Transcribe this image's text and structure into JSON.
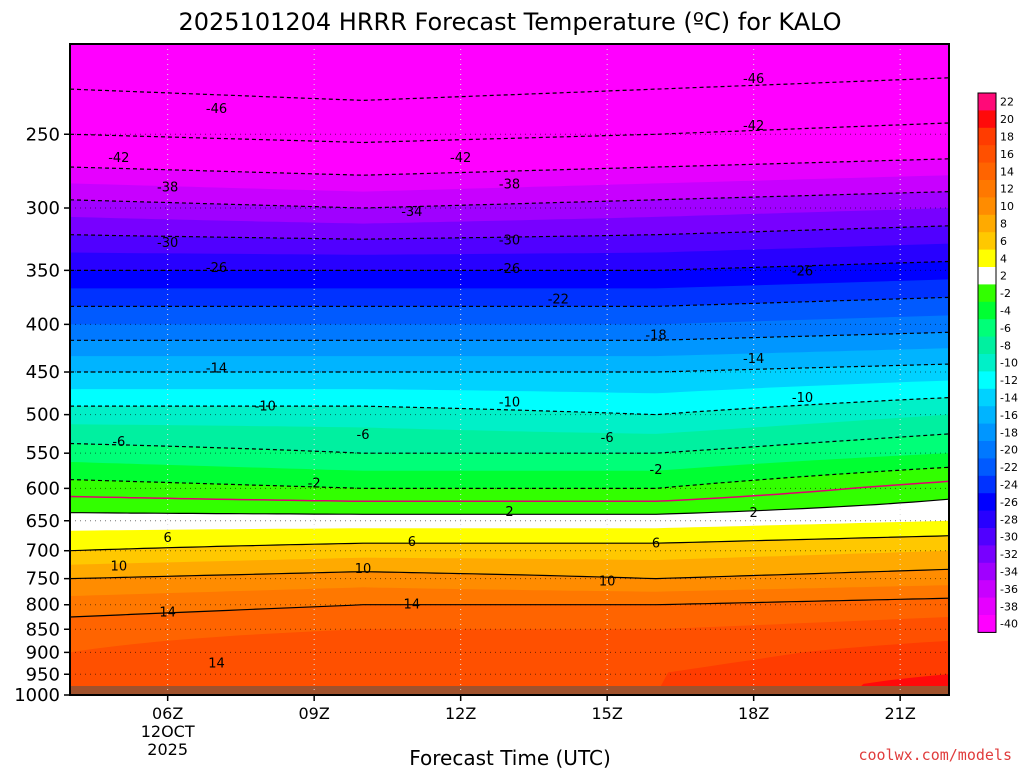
{
  "chart_data": {
    "type": "heatmap",
    "title": "2025101204 HRRR Forecast Temperature (ºC) for KALO",
    "xlabel": "Forecast Time (UTC)",
    "credit": "coolwx.com/models",
    "x_ticks": [
      {
        "hour": 6,
        "lines": [
          "06Z",
          "12OCT",
          "2025"
        ]
      },
      {
        "hour": 9,
        "lines": [
          "09Z"
        ]
      },
      {
        "hour": 12,
        "lines": [
          "12Z"
        ]
      },
      {
        "hour": 15,
        "lines": [
          "15Z"
        ]
      },
      {
        "hour": 18,
        "lines": [
          "18Z"
        ]
      },
      {
        "hour": 21,
        "lines": [
          "21Z"
        ]
      }
    ],
    "xlim_hours": [
      4,
      22
    ],
    "y_ticks": [
      250,
      300,
      350,
      400,
      450,
      500,
      550,
      600,
      650,
      700,
      750,
      800,
      850,
      900,
      950,
      1000
    ],
    "ylim_hpa": [
      200,
      1000
    ],
    "y_scale": "log-pressure",
    "ground_pressure": 978,
    "colorbar": {
      "labels": [
        "22",
        "20",
        "18",
        "16",
        "14",
        "12",
        "10",
        "8",
        "6",
        "4",
        "2",
        "-2",
        "-4",
        "-6",
        "-8",
        "-10",
        "-12",
        "-14",
        "-16",
        "-18",
        "-20",
        "-22",
        "-24",
        "-26",
        "-28",
        "-30",
        "-32",
        "-34",
        "-36",
        "-38",
        "-40"
      ],
      "colors": [
        "#ff0a78",
        "#ff0a0a",
        "#ff3c00",
        "#ff5000",
        "#ff6400",
        "#ff7800",
        "#ff8c00",
        "#ffaa00",
        "#ffc800",
        "#ffff00",
        "#ffffff",
        "#32ff00",
        "#00ff32",
        "#00ff78",
        "#00f0a0",
        "#00f0c8",
        "#00ffff",
        "#00d2ff",
        "#00b4ff",
        "#0096ff",
        "#0078ff",
        "#005aff",
        "#0032ff",
        "#0000ff",
        "#2800ff",
        "#5000ff",
        "#7800ff",
        "#a000ff",
        "#c800ff",
        "#e600ff",
        "#ff00ff"
      ]
    },
    "profile_levels_hpa": [
      200,
      250,
      300,
      350,
      400,
      450,
      500,
      550,
      600,
      650,
      700,
      750,
      800,
      850,
      900,
      950,
      978
    ],
    "profile_times_hours": [
      4,
      10,
      16,
      22
    ],
    "temperature_profiles_c": [
      [
        -50,
        -42,
        -33,
        -26,
        -20,
        -14,
        -9,
        -5,
        -1,
        3,
        6,
        10,
        13,
        15,
        16,
        17,
        17
      ],
      [
        -51,
        -43,
        -34,
        -26,
        -20,
        -14,
        -9,
        -6,
        -2,
        3,
        7,
        11,
        14,
        16,
        18,
        18,
        18
      ],
      [
        -50,
        -42,
        -33,
        -26,
        -20,
        -14,
        -10,
        -6,
        -2,
        3,
        7,
        10,
        14,
        16,
        17,
        18,
        18
      ],
      [
        -49,
        -41,
        -32,
        -25,
        -19,
        -13,
        -8,
        -4,
        1,
        4,
        8,
        11,
        15,
        17,
        19,
        20,
        21
      ]
    ],
    "contour_levels_c": [
      -46,
      -42,
      -38,
      -34,
      -30,
      -26,
      -22,
      -18,
      -14,
      -10,
      -6,
      -2,
      2,
      6,
      10,
      14
    ],
    "contour_labels": [
      {
        "text": "-46",
        "hour": 7,
        "hpa": 235
      },
      {
        "text": "-46",
        "hour": 18,
        "hpa": 218
      },
      {
        "text": "-42",
        "hour": 5,
        "hpa": 265
      },
      {
        "text": "-42",
        "hour": 12,
        "hpa": 265
      },
      {
        "text": "-42",
        "hour": 18,
        "hpa": 245
      },
      {
        "text": "-38",
        "hour": 6,
        "hpa": 285
      },
      {
        "text": "-38",
        "hour": 13,
        "hpa": 283
      },
      {
        "text": "-34",
        "hour": 11,
        "hpa": 303
      },
      {
        "text": "-30",
        "hour": 6,
        "hpa": 327
      },
      {
        "text": "-30",
        "hour": 13,
        "hpa": 325
      },
      {
        "text": "-26",
        "hour": 7,
        "hpa": 348
      },
      {
        "text": "-26",
        "hour": 13,
        "hpa": 349
      },
      {
        "text": "-26",
        "hour": 19,
        "hpa": 351
      },
      {
        "text": "-22",
        "hour": 14,
        "hpa": 376
      },
      {
        "text": "-18",
        "hour": 16,
        "hpa": 411
      },
      {
        "text": "-14",
        "hour": 7,
        "hpa": 446
      },
      {
        "text": "-14",
        "hour": 18,
        "hpa": 436
      },
      {
        "text": "-10",
        "hour": 8,
        "hpa": 490
      },
      {
        "text": "-10",
        "hour": 13,
        "hpa": 485
      },
      {
        "text": "-10",
        "hour": 19,
        "hpa": 480
      },
      {
        "text": "-6",
        "hour": 5,
        "hpa": 535
      },
      {
        "text": "-6",
        "hour": 10,
        "hpa": 526
      },
      {
        "text": "-6",
        "hour": 15,
        "hpa": 530
      },
      {
        "text": "-2",
        "hour": 9,
        "hpa": 593
      },
      {
        "text": "-2",
        "hour": 16,
        "hpa": 573
      },
      {
        "text": "2",
        "hour": 13,
        "hpa": 636
      },
      {
        "text": "2",
        "hour": 18,
        "hpa": 638
      },
      {
        "text": "6",
        "hour": 6,
        "hpa": 678
      },
      {
        "text": "6",
        "hour": 11,
        "hpa": 685
      },
      {
        "text": "6",
        "hour": 16,
        "hpa": 688
      },
      {
        "text": "10",
        "hour": 5,
        "hpa": 728
      },
      {
        "text": "10",
        "hour": 10,
        "hpa": 732
      },
      {
        "text": "10",
        "hour": 15,
        "hpa": 755
      },
      {
        "text": "14",
        "hour": 6,
        "hpa": 815
      },
      {
        "text": "14",
        "hour": 11,
        "hpa": 800
      },
      {
        "text": "14",
        "hour": 7,
        "hpa": 925
      }
    ],
    "grid": true
  }
}
